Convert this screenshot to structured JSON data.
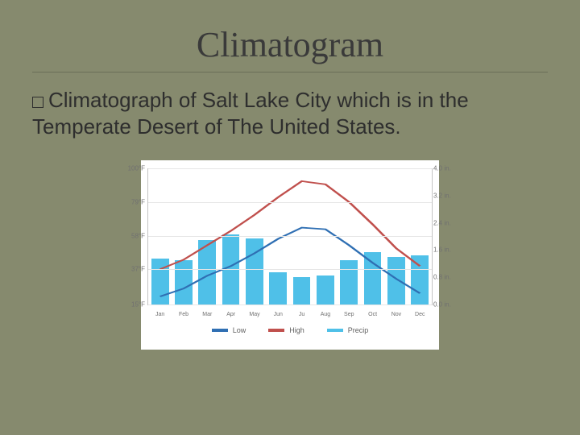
{
  "title": "Climatogram",
  "body": "Climatograph of Salt Lake City which is in the Temperate Desert of The United States.",
  "chart": {
    "type": "climograph",
    "background_color": "#ffffff",
    "grid_color": "#e6e6e6",
    "axis_color": "#c4c4c4",
    "label_color": "#707070",
    "label_fontsize": 8,
    "months": [
      "Jan",
      "Feb",
      "Mar",
      "Apr",
      "May",
      "Jun",
      "Ju",
      "Aug",
      "Sep",
      "Oct",
      "Nov",
      "Dec"
    ],
    "temp_axis": {
      "min": 15,
      "max": 100,
      "ticks": [
        {
          "v": 100,
          "label": "100°F"
        },
        {
          "v": 79,
          "label": "79°F"
        },
        {
          "v": 58,
          "label": "58°F"
        },
        {
          "v": 37,
          "label": "37°F"
        },
        {
          "v": 15,
          "label": "15°F"
        }
      ]
    },
    "precip_axis": {
      "min": 0.0,
      "max": 4.0,
      "ticks": [
        {
          "v": 4.0,
          "label": "4.0 in."
        },
        {
          "v": 3.2,
          "label": "3.2 in."
        },
        {
          "v": 2.4,
          "label": "2.4 in."
        },
        {
          "v": 1.6,
          "label": "1.6 in."
        },
        {
          "v": 0.8,
          "label": "0.8 in."
        },
        {
          "v": 0.0,
          "label": "0.0 in."
        }
      ]
    },
    "precip": {
      "values": [
        1.35,
        1.3,
        1.9,
        2.05,
        1.95,
        0.95,
        0.8,
        0.85,
        1.3,
        1.55,
        1.4,
        1.45
      ],
      "color": "#4fc0e8"
    },
    "low": {
      "values": [
        20,
        25,
        33,
        39,
        47,
        56,
        63,
        62,
        52,
        41,
        31,
        22
      ],
      "color": "#2f6fb3",
      "width": 1.8
    },
    "high": {
      "values": [
        37,
        43,
        52,
        61,
        71,
        82,
        92,
        90,
        79,
        65,
        50,
        39
      ],
      "color": "#c0504d",
      "width": 1.8
    },
    "legend": [
      {
        "label": "Low",
        "color": "#2f6fb3"
      },
      {
        "label": "High",
        "color": "#c0504d"
      },
      {
        "label": "Precip",
        "color": "#4fc0e8"
      }
    ]
  }
}
